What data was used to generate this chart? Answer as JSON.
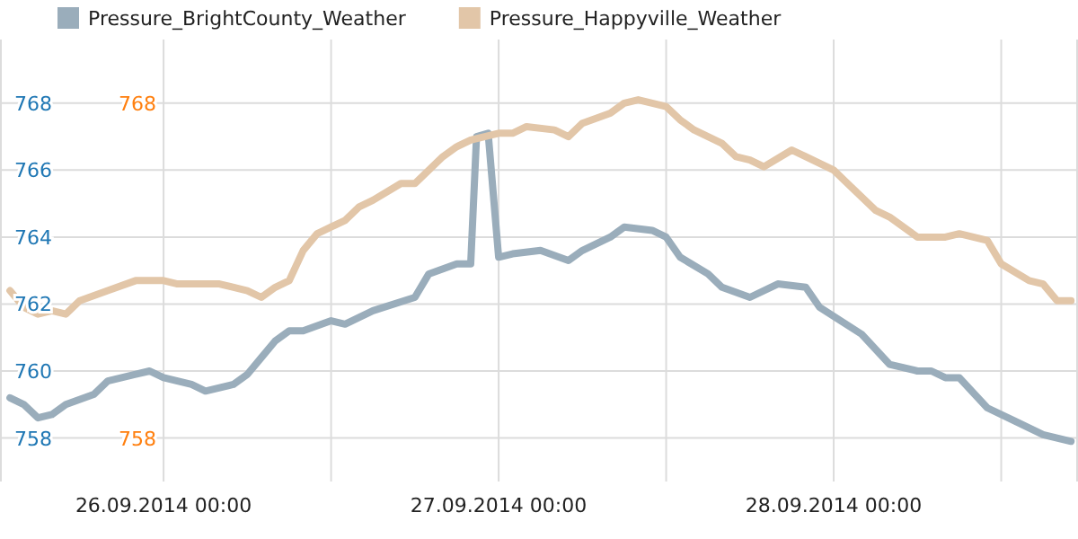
{
  "chart_data": {
    "type": "line",
    "legend": "top left",
    "grid": true,
    "line_style": "solid",
    "marker": "none",
    "xlim": [
      "2014-09-25T12:17",
      "2014-09-28T17:30"
    ],
    "xticks": [
      {
        "value": "2014-09-26T00:00",
        "label": "26.09.2014 00:00"
      },
      {
        "value": "2014-09-26T12:00",
        "label": null
      },
      {
        "value": "2014-09-27T00:00",
        "label": "27.09.2014 00:00"
      },
      {
        "value": "2014-09-27T12:00",
        "label": null
      },
      {
        "value": "2014-09-28T00:00",
        "label": "28.09.2014 00:00"
      },
      {
        "value": "2014-09-28T12:00",
        "label": null
      }
    ],
    "ylim": [
      756.7,
      769.9
    ],
    "yticks": [
      758,
      760,
      762,
      764,
      766,
      768
    ],
    "y2lim": [
      756.7,
      769.9
    ],
    "y2ticks": [
      758,
      768
    ],
    "series": [
      {
        "name": "Pressure_BrightCounty_Weather",
        "color": "#9aadbb",
        "x": [
          "2014-09-25T13:00",
          "2014-09-25T14:00",
          "2014-09-25T15:00",
          "2014-09-25T16:00",
          "2014-09-25T17:00",
          "2014-09-25T19:00",
          "2014-09-25T20:00",
          "2014-09-25T22:00",
          "2014-09-25T23:00",
          "2014-09-26T00:00",
          "2014-09-26T01:00",
          "2014-09-26T02:00",
          "2014-09-26T03:00",
          "2014-09-26T05:00",
          "2014-09-26T06:00",
          "2014-09-26T07:00",
          "2014-09-26T08:00",
          "2014-09-26T09:00",
          "2014-09-26T10:00",
          "2014-09-26T12:00",
          "2014-09-26T13:00",
          "2014-09-26T15:00",
          "2014-09-26T18:00",
          "2014-09-26T19:00",
          "2014-09-26T21:00",
          "2014-09-26T22:00",
          "2014-09-26T22:25",
          "2014-09-26T23:15",
          "2014-09-27T00:00",
          "2014-09-27T01:00",
          "2014-09-27T03:00",
          "2014-09-27T05:00",
          "2014-09-27T06:00",
          "2014-09-27T08:00",
          "2014-09-27T09:00",
          "2014-09-27T11:00",
          "2014-09-27T12:00",
          "2014-09-27T13:00",
          "2014-09-27T15:00",
          "2014-09-27T16:00",
          "2014-09-27T18:00",
          "2014-09-27T20:00",
          "2014-09-27T22:00",
          "2014-09-27T23:00",
          "2014-09-28T02:00",
          "2014-09-28T04:00",
          "2014-09-28T06:00",
          "2014-09-28T07:00",
          "2014-09-28T08:00",
          "2014-09-28T09:00",
          "2014-09-28T11:00",
          "2014-09-28T13:00",
          "2014-09-28T15:00",
          "2014-09-28T17:00"
        ],
        "values": [
          759.2,
          759.0,
          758.6,
          758.7,
          759.0,
          759.3,
          759.7,
          759.9,
          760.0,
          759.8,
          759.7,
          759.6,
          759.4,
          759.6,
          759.9,
          760.4,
          760.9,
          761.2,
          761.2,
          761.5,
          761.4,
          761.8,
          762.2,
          762.9,
          763.2,
          763.2,
          767.0,
          767.1,
          763.4,
          763.5,
          763.6,
          763.3,
          763.6,
          764.0,
          764.3,
          764.2,
          764.0,
          763.4,
          762.9,
          762.5,
          762.2,
          762.6,
          762.5,
          761.9,
          761.1,
          760.2,
          760.0,
          760.0,
          759.8,
          759.8,
          758.9,
          758.5,
          758.1,
          757.9
        ]
      },
      {
        "name": "Pressure_Happyville_Weather",
        "color": "#e2c6a8",
        "x": [
          "2014-09-25T13:00",
          "2014-09-25T14:00",
          "2014-09-25T15:00",
          "2014-09-25T16:00",
          "2014-09-25T17:00",
          "2014-09-25T18:00",
          "2014-09-25T20:00",
          "2014-09-25T22:00",
          "2014-09-25T23:00",
          "2014-09-26T00:00",
          "2014-09-26T01:00",
          "2014-09-26T02:00",
          "2014-09-26T04:00",
          "2014-09-26T06:00",
          "2014-09-26T07:00",
          "2014-09-26T08:00",
          "2014-09-26T09:00",
          "2014-09-26T10:00",
          "2014-09-26T11:00",
          "2014-09-26T12:00",
          "2014-09-26T13:00",
          "2014-09-26T14:00",
          "2014-09-26T15:00",
          "2014-09-26T17:00",
          "2014-09-26T18:00",
          "2014-09-26T20:00",
          "2014-09-26T21:00",
          "2014-09-26T22:00",
          "2014-09-27T00:00",
          "2014-09-27T01:00",
          "2014-09-27T02:00",
          "2014-09-27T04:00",
          "2014-09-27T05:00",
          "2014-09-27T06:00",
          "2014-09-27T08:00",
          "2014-09-27T09:00",
          "2014-09-27T10:00",
          "2014-09-27T12:00",
          "2014-09-27T13:00",
          "2014-09-27T14:00",
          "2014-09-27T16:00",
          "2014-09-27T17:00",
          "2014-09-27T18:00",
          "2014-09-27T19:00",
          "2014-09-27T21:00",
          "2014-09-27T22:00",
          "2014-09-28T00:00",
          "2014-09-28T01:00",
          "2014-09-28T03:00",
          "2014-09-28T04:00",
          "2014-09-28T06:00",
          "2014-09-28T08:00",
          "2014-09-28T09:00",
          "2014-09-28T11:00",
          "2014-09-28T12:00",
          "2014-09-28T14:00",
          "2014-09-28T15:00",
          "2014-09-28T16:00",
          "2014-09-28T17:00"
        ],
        "values": [
          762.4,
          761.9,
          761.7,
          761.8,
          761.7,
          762.1,
          762.4,
          762.7,
          762.7,
          762.7,
          762.6,
          762.6,
          762.6,
          762.4,
          762.2,
          762.5,
          762.7,
          763.6,
          764.1,
          764.3,
          764.5,
          764.9,
          765.1,
          765.6,
          765.6,
          766.4,
          766.7,
          766.9,
          767.1,
          767.1,
          767.3,
          767.2,
          767.0,
          767.4,
          767.7,
          768.0,
          768.1,
          767.9,
          767.5,
          767.2,
          766.8,
          766.4,
          766.3,
          766.1,
          766.6,
          766.4,
          766.0,
          765.6,
          764.8,
          764.6,
          764.0,
          764.0,
          764.1,
          763.9,
          763.2,
          762.7,
          762.6,
          762.1,
          762.1
        ]
      }
    ]
  }
}
